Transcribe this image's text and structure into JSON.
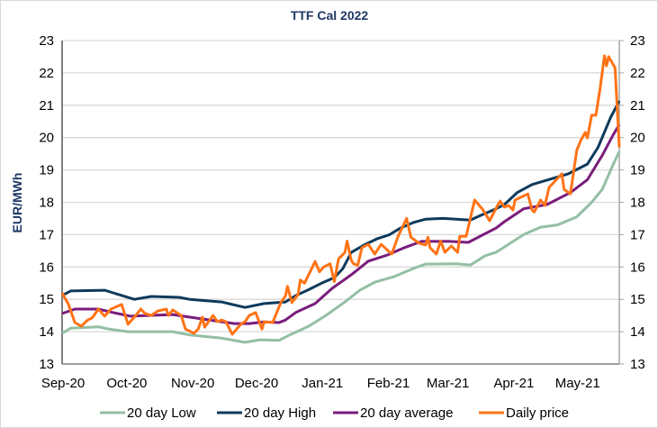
{
  "chart_data": {
    "type": "line",
    "title": "TTF Cal 2022",
    "ylabel": "EUR/MWh",
    "xlabel": "",
    "ylim": [
      13,
      23
    ],
    "xlim": [
      "2020-09-01",
      "2021-05-21"
    ],
    "y_ticks": [
      "13",
      "14",
      "15",
      "16",
      "17",
      "18",
      "19",
      "20",
      "21",
      "22",
      "23"
    ],
    "secondary_y_ticks": [
      "13",
      "14",
      "15",
      "16",
      "17",
      "18",
      "19",
      "20",
      "21",
      "22",
      "23"
    ],
    "x_ticks": [
      {
        "date": "2020-09-01",
        "label": "Sep-20"
      },
      {
        "date": "2020-10-01",
        "label": "Oct-20"
      },
      {
        "date": "2020-11-01",
        "label": "Nov-20"
      },
      {
        "date": "2020-12-01",
        "label": "Dec-20"
      },
      {
        "date": "2021-01-01",
        "label": "Jan-21"
      },
      {
        "date": "2021-02-01",
        "label": "Feb-21"
      },
      {
        "date": "2021-03-01",
        "label": "Mar-21"
      },
      {
        "date": "2021-04-01",
        "label": "Apr-21"
      },
      {
        "date": "2021-05-01",
        "label": "May-21"
      }
    ],
    "grid": true,
    "legend": "bottom",
    "series": [
      {
        "name": "20 day Low",
        "color": "#93BFA3",
        "points": [
          [
            "2020-09-01",
            13.95
          ],
          [
            "2020-09-05",
            14.11
          ],
          [
            "2020-09-18",
            14.15
          ],
          [
            "2020-09-23",
            14.08
          ],
          [
            "2020-10-02",
            14.0
          ],
          [
            "2020-10-23",
            14.0
          ],
          [
            "2020-10-31",
            13.9
          ],
          [
            "2020-11-15",
            13.8
          ],
          [
            "2020-11-26",
            13.67
          ],
          [
            "2020-12-03",
            13.75
          ],
          [
            "2020-12-12",
            13.73
          ],
          [
            "2020-12-17",
            13.9
          ],
          [
            "2020-12-26",
            14.17
          ],
          [
            "2021-01-03",
            14.5
          ],
          [
            "2021-01-12",
            14.92
          ],
          [
            "2021-01-19",
            15.28
          ],
          [
            "2021-01-26",
            15.53
          ],
          [
            "2021-02-04",
            15.7
          ],
          [
            "2021-02-13",
            15.95
          ],
          [
            "2021-02-19",
            16.09
          ],
          [
            "2021-03-05",
            16.1
          ],
          [
            "2021-03-12",
            16.06
          ],
          [
            "2021-03-19",
            16.35
          ],
          [
            "2021-03-24",
            16.45
          ],
          [
            "2021-04-06",
            17.0
          ],
          [
            "2021-04-14",
            17.23
          ],
          [
            "2021-04-22",
            17.3
          ],
          [
            "2021-05-01",
            17.55
          ],
          [
            "2021-05-08",
            18.0
          ],
          [
            "2021-05-13",
            18.4
          ],
          [
            "2021-05-18",
            19.15
          ],
          [
            "2021-05-21",
            19.57
          ]
        ]
      },
      {
        "name": "20 day High",
        "color": "#0D3A5C",
        "points": [
          [
            "2020-09-01",
            15.12
          ],
          [
            "2020-09-05",
            15.26
          ],
          [
            "2020-09-21",
            15.28
          ],
          [
            "2020-09-25",
            15.2
          ],
          [
            "2020-10-05",
            15.0
          ],
          [
            "2020-10-13",
            15.09
          ],
          [
            "2020-10-26",
            15.06
          ],
          [
            "2020-10-31",
            15.0
          ],
          [
            "2020-11-15",
            14.92
          ],
          [
            "2020-11-26",
            14.75
          ],
          [
            "2020-12-05",
            14.87
          ],
          [
            "2020-12-15",
            14.92
          ],
          [
            "2020-12-20",
            15.12
          ],
          [
            "2020-12-26",
            15.3
          ],
          [
            "2021-01-01",
            15.5
          ],
          [
            "2021-01-07",
            15.67
          ],
          [
            "2021-01-11",
            15.95
          ],
          [
            "2021-01-15",
            16.45
          ],
          [
            "2021-01-21",
            16.68
          ],
          [
            "2021-01-27",
            16.87
          ],
          [
            "2021-02-02",
            17.0
          ],
          [
            "2021-02-07",
            17.2
          ],
          [
            "2021-02-13",
            17.37
          ],
          [
            "2021-02-19",
            17.48
          ],
          [
            "2021-02-27",
            17.5
          ],
          [
            "2021-03-12",
            17.45
          ],
          [
            "2021-03-16",
            17.57
          ],
          [
            "2021-03-24",
            17.8
          ],
          [
            "2021-03-28",
            17.93
          ],
          [
            "2021-04-03",
            18.3
          ],
          [
            "2021-04-10",
            18.55
          ],
          [
            "2021-04-27",
            18.88
          ],
          [
            "2021-05-06",
            19.18
          ],
          [
            "2021-05-11",
            19.7
          ],
          [
            "2021-05-17",
            20.63
          ],
          [
            "2021-05-21",
            21.13
          ]
        ]
      },
      {
        "name": "20 day average",
        "color": "#7A1C7C",
        "points": [
          [
            "2020-09-01",
            14.56
          ],
          [
            "2020-09-07",
            14.7
          ],
          [
            "2020-09-18",
            14.7
          ],
          [
            "2020-09-25",
            14.59
          ],
          [
            "2020-10-03",
            14.48
          ],
          [
            "2020-10-23",
            14.53
          ],
          [
            "2020-11-03",
            14.42
          ],
          [
            "2020-11-21",
            14.25
          ],
          [
            "2020-11-28",
            14.25
          ],
          [
            "2020-12-05",
            14.3
          ],
          [
            "2020-12-12",
            14.28
          ],
          [
            "2020-12-15",
            14.36
          ],
          [
            "2020-12-20",
            14.6
          ],
          [
            "2020-12-29",
            14.87
          ],
          [
            "2021-01-06",
            15.34
          ],
          [
            "2021-01-15",
            15.76
          ],
          [
            "2021-01-23",
            16.18
          ],
          [
            "2021-02-01",
            16.37
          ],
          [
            "2021-02-09",
            16.6
          ],
          [
            "2021-02-17",
            16.79
          ],
          [
            "2021-03-02",
            16.79
          ],
          [
            "2021-03-11",
            16.76
          ],
          [
            "2021-03-18",
            17.0
          ],
          [
            "2021-03-24",
            17.2
          ],
          [
            "2021-03-28",
            17.4
          ],
          [
            "2021-04-06",
            17.8
          ],
          [
            "2021-04-17",
            17.93
          ],
          [
            "2021-04-28",
            18.3
          ],
          [
            "2021-05-06",
            18.7
          ],
          [
            "2021-05-13",
            19.45
          ],
          [
            "2021-05-18",
            20.07
          ],
          [
            "2021-05-21",
            20.4
          ]
        ]
      },
      {
        "name": "Daily price",
        "color": "#FF7316",
        "points": [
          [
            "2020-09-01",
            15.2
          ],
          [
            "2020-09-04",
            14.84
          ],
          [
            "2020-09-07",
            14.28
          ],
          [
            "2020-09-10",
            14.17
          ],
          [
            "2020-09-13",
            14.36
          ],
          [
            "2020-09-15",
            14.42
          ],
          [
            "2020-09-16",
            14.5
          ],
          [
            "2020-09-18",
            14.7
          ],
          [
            "2020-09-21",
            14.48
          ],
          [
            "2020-09-24",
            14.7
          ],
          [
            "2020-09-29",
            14.84
          ],
          [
            "2020-10-02",
            14.23
          ],
          [
            "2020-10-05",
            14.45
          ],
          [
            "2020-10-08",
            14.7
          ],
          [
            "2020-10-10",
            14.56
          ],
          [
            "2020-10-13",
            14.5
          ],
          [
            "2020-10-16",
            14.64
          ],
          [
            "2020-10-20",
            14.7
          ],
          [
            "2020-10-21",
            14.5
          ],
          [
            "2020-10-23",
            14.67
          ],
          [
            "2020-10-27",
            14.5
          ],
          [
            "2020-10-29",
            14.08
          ],
          [
            "2020-11-02",
            13.95
          ],
          [
            "2020-11-04",
            14.08
          ],
          [
            "2020-11-06",
            14.45
          ],
          [
            "2020-11-07",
            14.14
          ],
          [
            "2020-11-11",
            14.5
          ],
          [
            "2020-11-13",
            14.31
          ],
          [
            "2020-11-15",
            14.36
          ],
          [
            "2020-11-17",
            14.31
          ],
          [
            "2020-11-20",
            13.92
          ],
          [
            "2020-11-24",
            14.23
          ],
          [
            "2020-11-26",
            14.31
          ],
          [
            "2020-11-28",
            14.5
          ],
          [
            "2020-12-01",
            14.59
          ],
          [
            "2020-12-04",
            14.08
          ],
          [
            "2020-12-05",
            14.31
          ],
          [
            "2020-12-09",
            14.28
          ],
          [
            "2020-12-13",
            14.92
          ],
          [
            "2020-12-15",
            15.1
          ],
          [
            "2020-12-16",
            15.4
          ],
          [
            "2020-12-18",
            14.9
          ],
          [
            "2020-12-21",
            15.15
          ],
          [
            "2020-12-22",
            15.6
          ],
          [
            "2020-12-24",
            15.5
          ],
          [
            "2020-12-29",
            16.17
          ],
          [
            "2020-12-31",
            15.85
          ],
          [
            "2021-01-02",
            16.0
          ],
          [
            "2021-01-05",
            16.1
          ],
          [
            "2021-01-07",
            15.55
          ],
          [
            "2021-01-09",
            16.25
          ],
          [
            "2021-01-12",
            16.45
          ],
          [
            "2021-01-13",
            16.8
          ],
          [
            "2021-01-15",
            16.2
          ],
          [
            "2021-01-16",
            16.1
          ],
          [
            "2021-01-18",
            16.05
          ],
          [
            "2021-01-20",
            16.6
          ],
          [
            "2021-01-23",
            16.7
          ],
          [
            "2021-01-26",
            16.4
          ],
          [
            "2021-01-29",
            16.7
          ],
          [
            "2021-02-03",
            16.4
          ],
          [
            "2021-02-06",
            16.95
          ],
          [
            "2021-02-10",
            17.5
          ],
          [
            "2021-02-12",
            16.92
          ],
          [
            "2021-02-16",
            16.73
          ],
          [
            "2021-02-19",
            16.68
          ],
          [
            "2021-02-20",
            16.92
          ],
          [
            "2021-02-21",
            16.6
          ],
          [
            "2021-02-24",
            16.4
          ],
          [
            "2021-02-26",
            16.8
          ],
          [
            "2021-02-28",
            16.45
          ],
          [
            "2021-03-03",
            16.65
          ],
          [
            "2021-03-06",
            16.45
          ],
          [
            "2021-03-07",
            16.95
          ],
          [
            "2021-03-10",
            16.95
          ],
          [
            "2021-03-14",
            18.07
          ],
          [
            "2021-03-18",
            17.76
          ],
          [
            "2021-03-21",
            17.43
          ],
          [
            "2021-03-25",
            17.93
          ],
          [
            "2021-03-26",
            18.04
          ],
          [
            "2021-03-28",
            17.85
          ],
          [
            "2021-03-30",
            17.9
          ],
          [
            "2021-04-01",
            17.76
          ],
          [
            "2021-04-02",
            18.07
          ],
          [
            "2021-04-08",
            18.26
          ],
          [
            "2021-04-10",
            17.76
          ],
          [
            "2021-04-11",
            17.7
          ],
          [
            "2021-04-14",
            18.07
          ],
          [
            "2021-04-16",
            17.9
          ],
          [
            "2021-04-18",
            18.46
          ],
          [
            "2021-04-24",
            18.88
          ],
          [
            "2021-04-25",
            18.4
          ],
          [
            "2021-04-28",
            18.26
          ],
          [
            "2021-05-01",
            19.6
          ],
          [
            "2021-05-03",
            19.93
          ],
          [
            "2021-05-05",
            20.16
          ],
          [
            "2021-05-06",
            19.99
          ],
          [
            "2021-05-08",
            20.69
          ],
          [
            "2021-05-10",
            20.69
          ],
          [
            "2021-05-12",
            21.52
          ],
          [
            "2021-05-14",
            22.53
          ],
          [
            "2021-05-15",
            22.22
          ],
          [
            "2021-05-16",
            22.5
          ],
          [
            "2021-05-19",
            22.16
          ],
          [
            "2021-05-21",
            19.7
          ]
        ]
      }
    ]
  }
}
